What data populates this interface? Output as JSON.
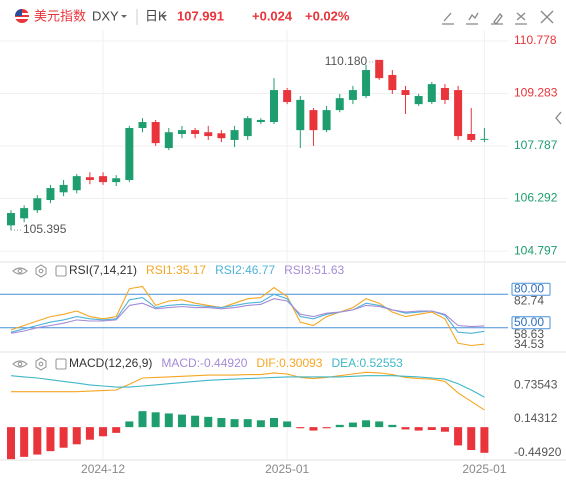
{
  "header": {
    "name": "美元指数",
    "symbol": "DXY",
    "period": "日K",
    "price": "107.991",
    "change": "+0.024",
    "change_pct": "+0.02%"
  },
  "chart_data": [
    {
      "type": "candlestick",
      "categories": [
        null,
        null,
        null,
        null,
        null,
        null,
        null,
        "2024-12",
        null,
        null,
        null,
        null,
        null,
        null,
        null,
        null,
        null,
        null,
        null,
        null,
        null,
        "2025-01",
        null,
        null,
        null,
        null,
        null,
        null,
        null,
        null,
        null,
        null,
        null,
        null,
        null,
        null,
        "2025-01"
      ],
      "open": [
        105.53,
        105.73,
        105.96,
        106.25,
        106.47,
        106.53,
        106.9,
        106.93,
        106.76,
        106.82,
        108.3,
        108.47,
        107.73,
        108.13,
        108.24,
        108.18,
        108.15,
        107.96,
        108.07,
        108.47,
        108.47,
        109.38,
        108.24,
        108.81,
        108.24,
        108.81,
        109.1,
        109.21,
        110.24,
        109.81,
        109.38,
        108.98,
        109.04,
        109.44,
        109.38,
        108.13,
        107.967
      ],
      "close": [
        105.88,
        106.02,
        106.3,
        106.59,
        106.68,
        106.93,
        106.82,
        106.76,
        106.87,
        108.3,
        108.47,
        107.87,
        108.18,
        108.24,
        108.13,
        108.07,
        108.01,
        108.24,
        108.58,
        108.53,
        109.38,
        109.04,
        109.1,
        108.24,
        108.81,
        109.15,
        109.38,
        109.95,
        109.72,
        109.38,
        109.24,
        109.21,
        109.55,
        109.1,
        108.07,
        107.96,
        107.991
      ],
      "high": [
        105.96,
        106.1,
        106.39,
        106.68,
        106.82,
        106.99,
        107.04,
        107.04,
        106.96,
        108.36,
        108.58,
        108.53,
        108.3,
        108.36,
        108.3,
        108.36,
        108.24,
        108.36,
        108.64,
        108.58,
        109.72,
        109.44,
        109.21,
        108.87,
        108.93,
        109.27,
        109.5,
        110.1,
        110.18,
        109.95,
        109.5,
        109.27,
        109.61,
        109.55,
        109.5,
        108.87,
        108.3
      ],
      "low": [
        105.395,
        105.62,
        105.88,
        106.16,
        106.36,
        106.44,
        106.7,
        106.68,
        106.65,
        106.76,
        108.18,
        107.79,
        107.67,
        108.01,
        108.01,
        107.96,
        107.9,
        107.76,
        107.96,
        108.41,
        108.41,
        108.98,
        107.73,
        107.79,
        108.18,
        108.75,
        108.98,
        109.15,
        109.67,
        109.27,
        108.7,
        108.93,
        108.98,
        108.98,
        107.96,
        107.9,
        107.9
      ],
      "up_color": "#1e9e6e",
      "down_color": "#e8343a",
      "ylim": [
        104.6,
        111.09
      ],
      "yticks": [
        110.778,
        109.283,
        107.787,
        106.292,
        104.797
      ],
      "grid": true,
      "annotations": [
        {
          "value": 110.18,
          "label": "110.180"
        },
        {
          "value": 105.395,
          "label": "105.395"
        }
      ]
    },
    {
      "type": "line",
      "title": "RSI(7,14,21)",
      "series": [
        {
          "name": "RSI1:35.17",
          "color": "#f5a623",
          "values": [
            48,
            52,
            56,
            60,
            62,
            65,
            60,
            58,
            60,
            85,
            87,
            70,
            74,
            75,
            72,
            70,
            68,
            72,
            76,
            77,
            86,
            78,
            55,
            52,
            60,
            64,
            68,
            76,
            72,
            64,
            60,
            62,
            64,
            58,
            36,
            34,
            35.17
          ]
        },
        {
          "name": "RSI2:46.77",
          "color": "#4fb3d9",
          "values": [
            46,
            49,
            52,
            55,
            57,
            60,
            58,
            57,
            58,
            75,
            77,
            68,
            70,
            71,
            70,
            69,
            68,
            70,
            72,
            73,
            80,
            76,
            60,
            58,
            62,
            64,
            66,
            72,
            70,
            66,
            63,
            64,
            65,
            61,
            46,
            45,
            46.77
          ]
        },
        {
          "name": "RSI3:51.63",
          "color": "#a58bd8",
          "values": [
            45,
            47,
            50,
            52,
            54,
            57,
            56,
            56,
            57,
            70,
            72,
            67,
            68,
            69,
            68,
            68,
            67,
            68,
            70,
            71,
            76,
            74,
            62,
            60,
            63,
            64,
            66,
            70,
            69,
            66,
            64,
            65,
            65,
            62,
            52,
            51,
            51.63
          ]
        }
      ],
      "ylim": [
        30,
        91
      ],
      "yticks": [
        82.74,
        58.63,
        34.53
      ],
      "reference_lines": [
        {
          "value": 80,
          "label": "80.00"
        },
        {
          "value": 50,
          "label": "50.00"
        }
      ]
    },
    {
      "type": "macd",
      "title": "MACD(12,26,9)",
      "up_color": "#1e9e6e",
      "down_color": "#e8343a",
      "series": [
        {
          "name": "MACD:-0.44920",
          "type": "bar",
          "color": "#a58bd8",
          "values": [
            -0.56,
            -0.52,
            -0.48,
            -0.42,
            -0.36,
            -0.3,
            -0.22,
            -0.16,
            -0.1,
            0.1,
            0.28,
            0.26,
            0.24,
            0.22,
            0.2,
            0.18,
            0.16,
            0.14,
            0.14,
            0.12,
            0.16,
            0.1,
            -0.02,
            -0.06,
            -0.02,
            0.04,
            0.08,
            0.12,
            0.1,
            0.04,
            -0.04,
            -0.06,
            -0.05,
            -0.08,
            -0.32,
            -0.4,
            -0.4492
          ]
        },
        {
          "name": "DIF:0.30093",
          "type": "line",
          "color": "#f5a623",
          "values": [
            0.62,
            0.62,
            0.62,
            0.62,
            0.62,
            0.62,
            0.63,
            0.64,
            0.65,
            0.75,
            0.86,
            0.87,
            0.88,
            0.89,
            0.9,
            0.91,
            0.91,
            0.91,
            0.92,
            0.92,
            0.95,
            0.93,
            0.87,
            0.85,
            0.87,
            0.9,
            0.93,
            0.96,
            0.95,
            0.92,
            0.87,
            0.85,
            0.84,
            0.8,
            0.6,
            0.45,
            0.30093
          ]
        },
        {
          "name": "DEA:0.52553",
          "type": "line",
          "color": "#3fb7c7",
          "values": [
            0.9,
            0.88,
            0.86,
            0.83,
            0.8,
            0.77,
            0.74,
            0.72,
            0.7,
            0.7,
            0.72,
            0.74,
            0.76,
            0.78,
            0.8,
            0.82,
            0.83,
            0.84,
            0.85,
            0.86,
            0.87,
            0.88,
            0.88,
            0.88,
            0.88,
            0.88,
            0.89,
            0.9,
            0.9,
            0.9,
            0.89,
            0.88,
            0.86,
            0.84,
            0.76,
            0.65,
            0.52553
          ]
        }
      ],
      "ylim": [
        -0.61,
        1.14
      ],
      "yticks": [
        0.73543,
        0.14312,
        {
          "value": -0.4492,
          "label": "-0.44920"
        }
      ]
    }
  ]
}
